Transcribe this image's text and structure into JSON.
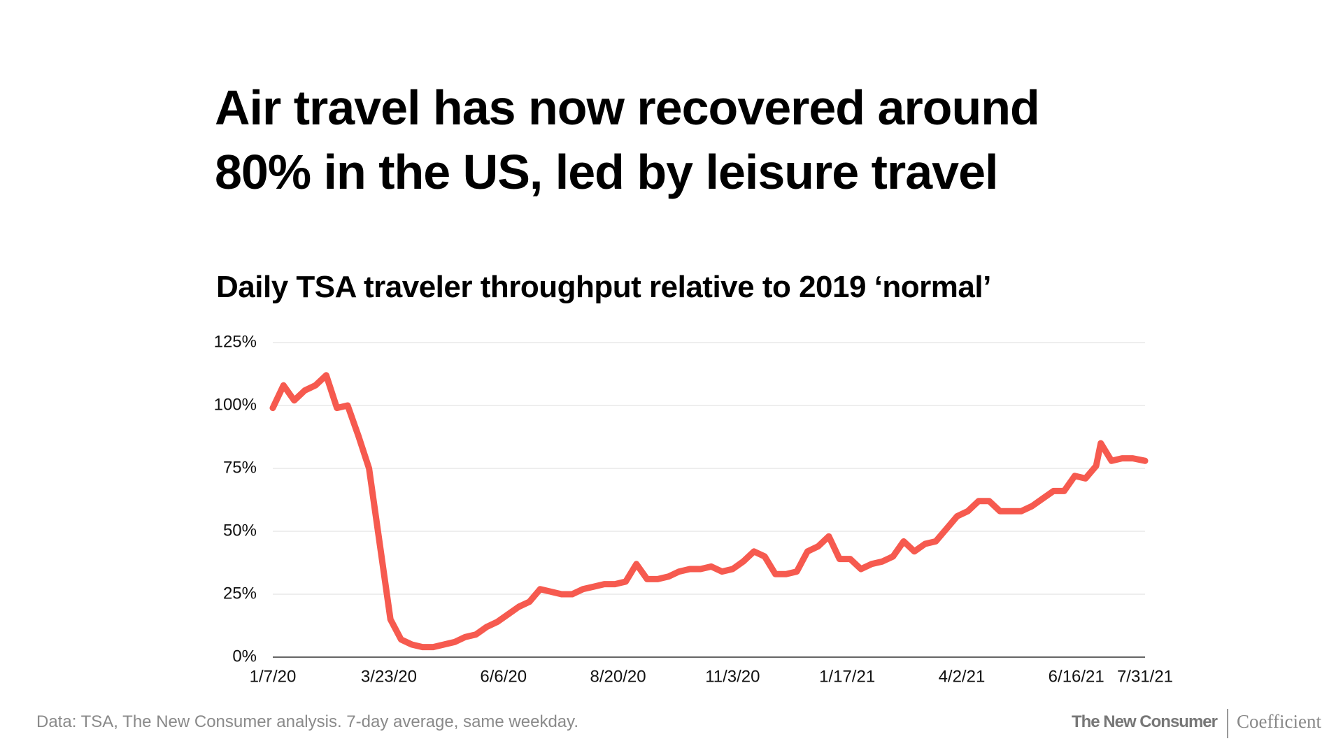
{
  "chart_data": {
    "type": "line",
    "title": "Air travel has now recovered around 80% in the US, led by leisure travel",
    "subtitle": "Daily TSA traveler throughput relative to 2019 ‘normal’",
    "source": "Data: TSA, The New Consumer analysis. 7-day average, same weekday.",
    "x": [
      "1/7/20",
      "1/14/20",
      "1/21/20",
      "1/28/20",
      "2/4/20",
      "2/11/20",
      "2/18/20",
      "2/25/20",
      "3/3/20",
      "3/10/20",
      "3/17/20",
      "3/24/20",
      "3/31/20",
      "4/7/20",
      "4/14/20",
      "4/21/20",
      "4/28/20",
      "5/5/20",
      "5/12/20",
      "5/19/20",
      "5/26/20",
      "6/2/20",
      "6/9/20",
      "6/16/20",
      "6/23/20",
      "6/30/20",
      "7/7/20",
      "7/14/20",
      "7/21/20",
      "7/28/20",
      "8/4/20",
      "8/11/20",
      "8/18/20",
      "8/25/20",
      "9/1/20",
      "9/8/20",
      "9/15/20",
      "9/22/20",
      "9/29/20",
      "10/6/20",
      "10/13/20",
      "10/20/20",
      "10/27/20",
      "11/3/20",
      "11/10/20",
      "11/17/20",
      "11/24/20",
      "12/1/20",
      "12/8/20",
      "12/15/20",
      "12/22/20",
      "12/29/20",
      "1/5/21",
      "1/12/21",
      "1/19/21",
      "1/26/21",
      "2/2/21",
      "2/9/21",
      "2/16/21",
      "2/23/21",
      "3/2/21",
      "3/9/21",
      "3/16/21",
      "3/23/21",
      "3/30/21",
      "4/6/21",
      "4/13/21",
      "4/20/21",
      "4/27/21",
      "5/4/21",
      "5/11/21",
      "5/18/21",
      "5/25/21",
      "6/1/21",
      "6/8/21",
      "6/15/21",
      "6/22/21",
      "6/29/21",
      "7/2/21",
      "7/9/21",
      "7/16/21",
      "7/23/21",
      "7/31/21"
    ],
    "series": [
      {
        "name": "TSA throughput vs 2019",
        "color": "#f65a4f",
        "values": [
          99,
          108,
          102,
          106,
          108,
          112,
          99,
          100,
          88,
          75,
          45,
          15,
          7,
          5,
          4,
          4,
          5,
          6,
          8,
          9,
          12,
          14,
          17,
          20,
          22,
          27,
          26,
          25,
          25,
          27,
          28,
          29,
          29,
          30,
          37,
          31,
          31,
          32,
          34,
          35,
          35,
          36,
          34,
          35,
          38,
          42,
          40,
          33,
          33,
          34,
          42,
          44,
          48,
          39,
          39,
          35,
          37,
          38,
          40,
          46,
          42,
          45,
          46,
          51,
          56,
          58,
          62,
          62,
          58,
          58,
          58,
          60,
          63,
          66,
          66,
          72,
          71,
          76,
          85,
          78,
          79,
          79,
          78
        ]
      }
    ],
    "xlim": [
      "1/7/20",
      "7/31/21"
    ],
    "xticks": [
      "1/7/20",
      "3/23/20",
      "6/6/20",
      "8/20/20",
      "11/3/20",
      "1/17/21",
      "4/2/21",
      "6/16/21",
      "7/31/21"
    ],
    "ylim": [
      0,
      125
    ],
    "yticks": [
      {
        "value": 0,
        "label": "0%"
      },
      {
        "value": 25,
        "label": "25%"
      },
      {
        "value": 50,
        "label": "50%"
      },
      {
        "value": 75,
        "label": "75%"
      },
      {
        "value": 100,
        "label": "100%"
      },
      {
        "value": 125,
        "label": "125%"
      }
    ],
    "grid": true
  },
  "brands": [
    "The New Consumer",
    "Coefficient"
  ]
}
